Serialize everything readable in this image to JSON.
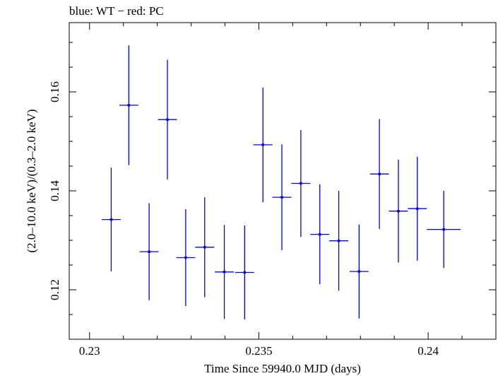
{
  "chart_data": {
    "type": "scatter",
    "title": "blue: WT − red: PC",
    "xlabel": "Time Since 59940.0 MJD (days)",
    "ylabel": "(2.0–10.0 keV)/(0.3–2.0 keV)",
    "xlim": [
      0.2294,
      0.242
    ],
    "ylim": [
      0.11,
      0.174
    ],
    "xticks": [
      0.23,
      0.235,
      0.24
    ],
    "xtick_labels": [
      "0.23",
      "0.235",
      "0.24"
    ],
    "yticks": [
      0.12,
      0.14,
      0.16
    ],
    "ytick_labels": [
      "0.12",
      "0.14",
      "0.16"
    ],
    "grid": false,
    "series": [
      {
        "color": "#0000ee",
        "points": [
          {
            "x": 0.23064,
            "xerr": 0.00028,
            "y": 0.1342,
            "yerr": 0.0105
          },
          {
            "x": 0.23116,
            "xerr": 0.00028,
            "y": 0.1573,
            "yerr": 0.0121
          },
          {
            "x": 0.23176,
            "xerr": 0.00028,
            "y": 0.1277,
            "yerr": 0.0098
          },
          {
            "x": 0.2323,
            "xerr": 0.00028,
            "y": 0.1544,
            "yerr": 0.0121
          },
          {
            "x": 0.23284,
            "xerr": 0.00028,
            "y": 0.1265,
            "yerr": 0.0098
          },
          {
            "x": 0.2334,
            "xerr": 0.00028,
            "y": 0.1286,
            "yerr": 0.0101
          },
          {
            "x": 0.23398,
            "xerr": 0.00028,
            "y": 0.1236,
            "yerr": 0.0095
          },
          {
            "x": 0.23458,
            "xerr": 0.00028,
            "y": 0.1235,
            "yerr": 0.0095
          },
          {
            "x": 0.23512,
            "xerr": 0.00028,
            "y": 0.1493,
            "yerr": 0.0116
          },
          {
            "x": 0.23568,
            "xerr": 0.00028,
            "y": 0.1387,
            "yerr": 0.0107
          },
          {
            "x": 0.23624,
            "xerr": 0.00028,
            "y": 0.1415,
            "yerr": 0.0108
          },
          {
            "x": 0.2368,
            "xerr": 0.00028,
            "y": 0.1312,
            "yerr": 0.0101
          },
          {
            "x": 0.23736,
            "xerr": 0.00028,
            "y": 0.1299,
            "yerr": 0.0101
          },
          {
            "x": 0.23796,
            "xerr": 0.00028,
            "y": 0.1237,
            "yerr": 0.0095
          },
          {
            "x": 0.23856,
            "xerr": 0.00028,
            "y": 0.1434,
            "yerr": 0.0111
          },
          {
            "x": 0.23912,
            "xerr": 0.00028,
            "y": 0.1359,
            "yerr": 0.0104
          },
          {
            "x": 0.23968,
            "xerr": 0.00028,
            "y": 0.1364,
            "yerr": 0.0105
          },
          {
            "x": 0.24046,
            "xerr": 0.0005,
            "y": 0.1322,
            "yerr": 0.0078
          }
        ]
      }
    ]
  }
}
